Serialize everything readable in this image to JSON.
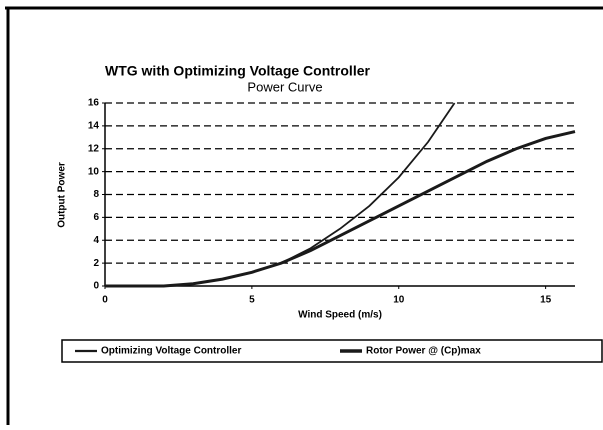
{
  "chart_data": {
    "type": "line",
    "title": "WTG with Optimizing Voltage Controller",
    "subtitle": "Power Curve",
    "x_label": "Wind Speed (m/s)",
    "y_label": "Output Power",
    "xlim": [
      0,
      16
    ],
    "ylim": [
      0,
      16
    ],
    "xticks": [
      0,
      5,
      10,
      15
    ],
    "yticks": [
      0,
      2,
      4,
      6,
      8,
      10,
      12,
      14,
      16
    ],
    "grid": true,
    "legend": "bottom",
    "series": [
      {
        "name": "Optimizing Voltage Controller",
        "color": "#1a1a1a",
        "line_width": 1.8,
        "x": [
          0,
          1,
          2,
          3,
          4,
          5,
          6,
          7,
          8,
          9,
          10,
          11,
          11.9
        ],
        "values": [
          0,
          0,
          0,
          0.2,
          0.6,
          1.2,
          2.0,
          3.3,
          5.0,
          7.0,
          9.5,
          12.6,
          16
        ]
      },
      {
        "name": "Rotor Power @ (Cp)max",
        "color": "#1a1a1a",
        "line_width": 3,
        "x": [
          0,
          1,
          2,
          3,
          4,
          5,
          6,
          7,
          8,
          9,
          10,
          11,
          12,
          13,
          14,
          15,
          16
        ],
        "values": [
          0,
          0,
          0,
          0.2,
          0.6,
          1.2,
          2.0,
          3.1,
          4.4,
          5.7,
          7.0,
          8.3,
          9.6,
          10.9,
          12.0,
          12.9,
          13.5
        ]
      }
    ]
  }
}
